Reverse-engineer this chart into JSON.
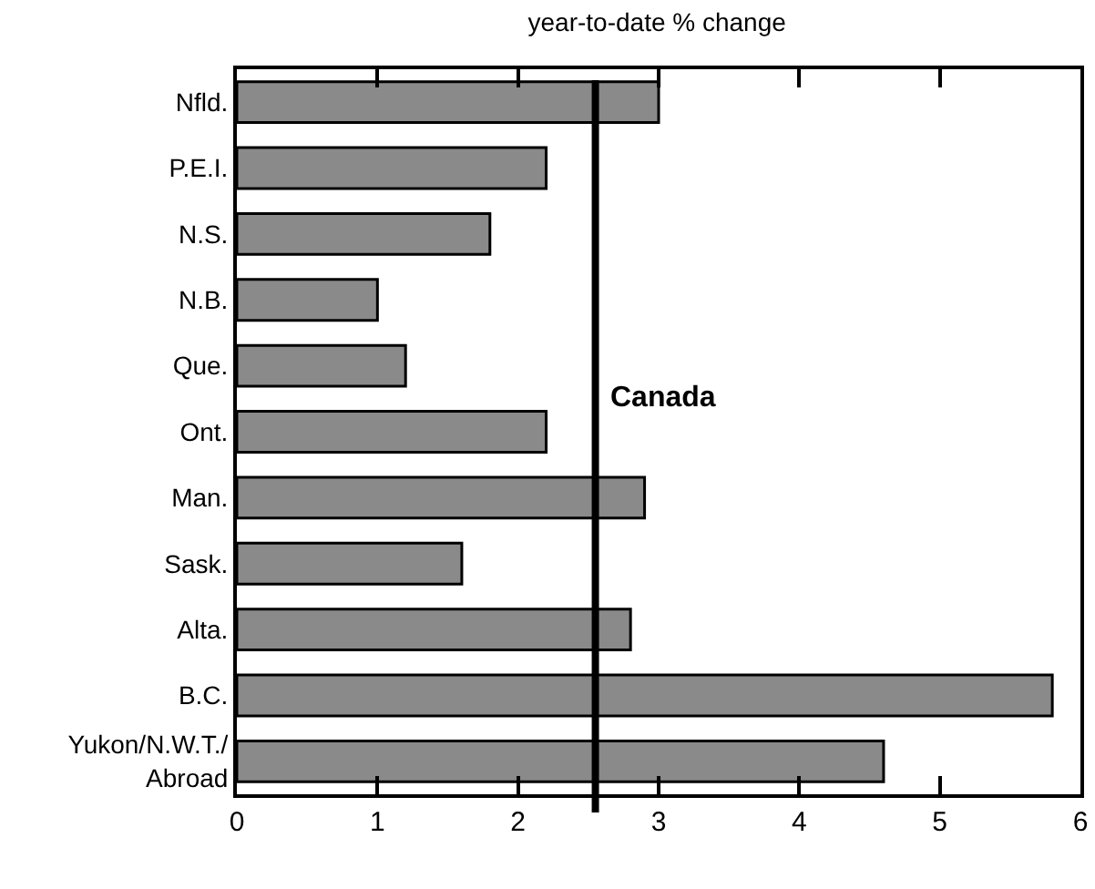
{
  "chart_data": {
    "type": "bar",
    "orientation": "horizontal",
    "title": "year-to-date % change",
    "categories": [
      "Nfld.",
      "P.E.I.",
      "N.S.",
      "N.B.",
      "Que.",
      "Ont.",
      "Man.",
      "Sask.",
      "Alta.",
      "B.C.",
      "Yukon/N.W.T./\nAbroad"
    ],
    "values": [
      3.0,
      2.2,
      1.8,
      1.0,
      1.2,
      2.2,
      2.9,
      1.6,
      2.8,
      5.8,
      4.6
    ],
    "color": "#8a8a8a",
    "xlim": [
      0,
      6
    ],
    "xticks": [
      0,
      1,
      2,
      3,
      4,
      5,
      6
    ],
    "ref_lines": [
      {
        "axis": "x",
        "value": 2.55,
        "label": "Canada",
        "color": "#000000"
      }
    ],
    "grid": false
  }
}
